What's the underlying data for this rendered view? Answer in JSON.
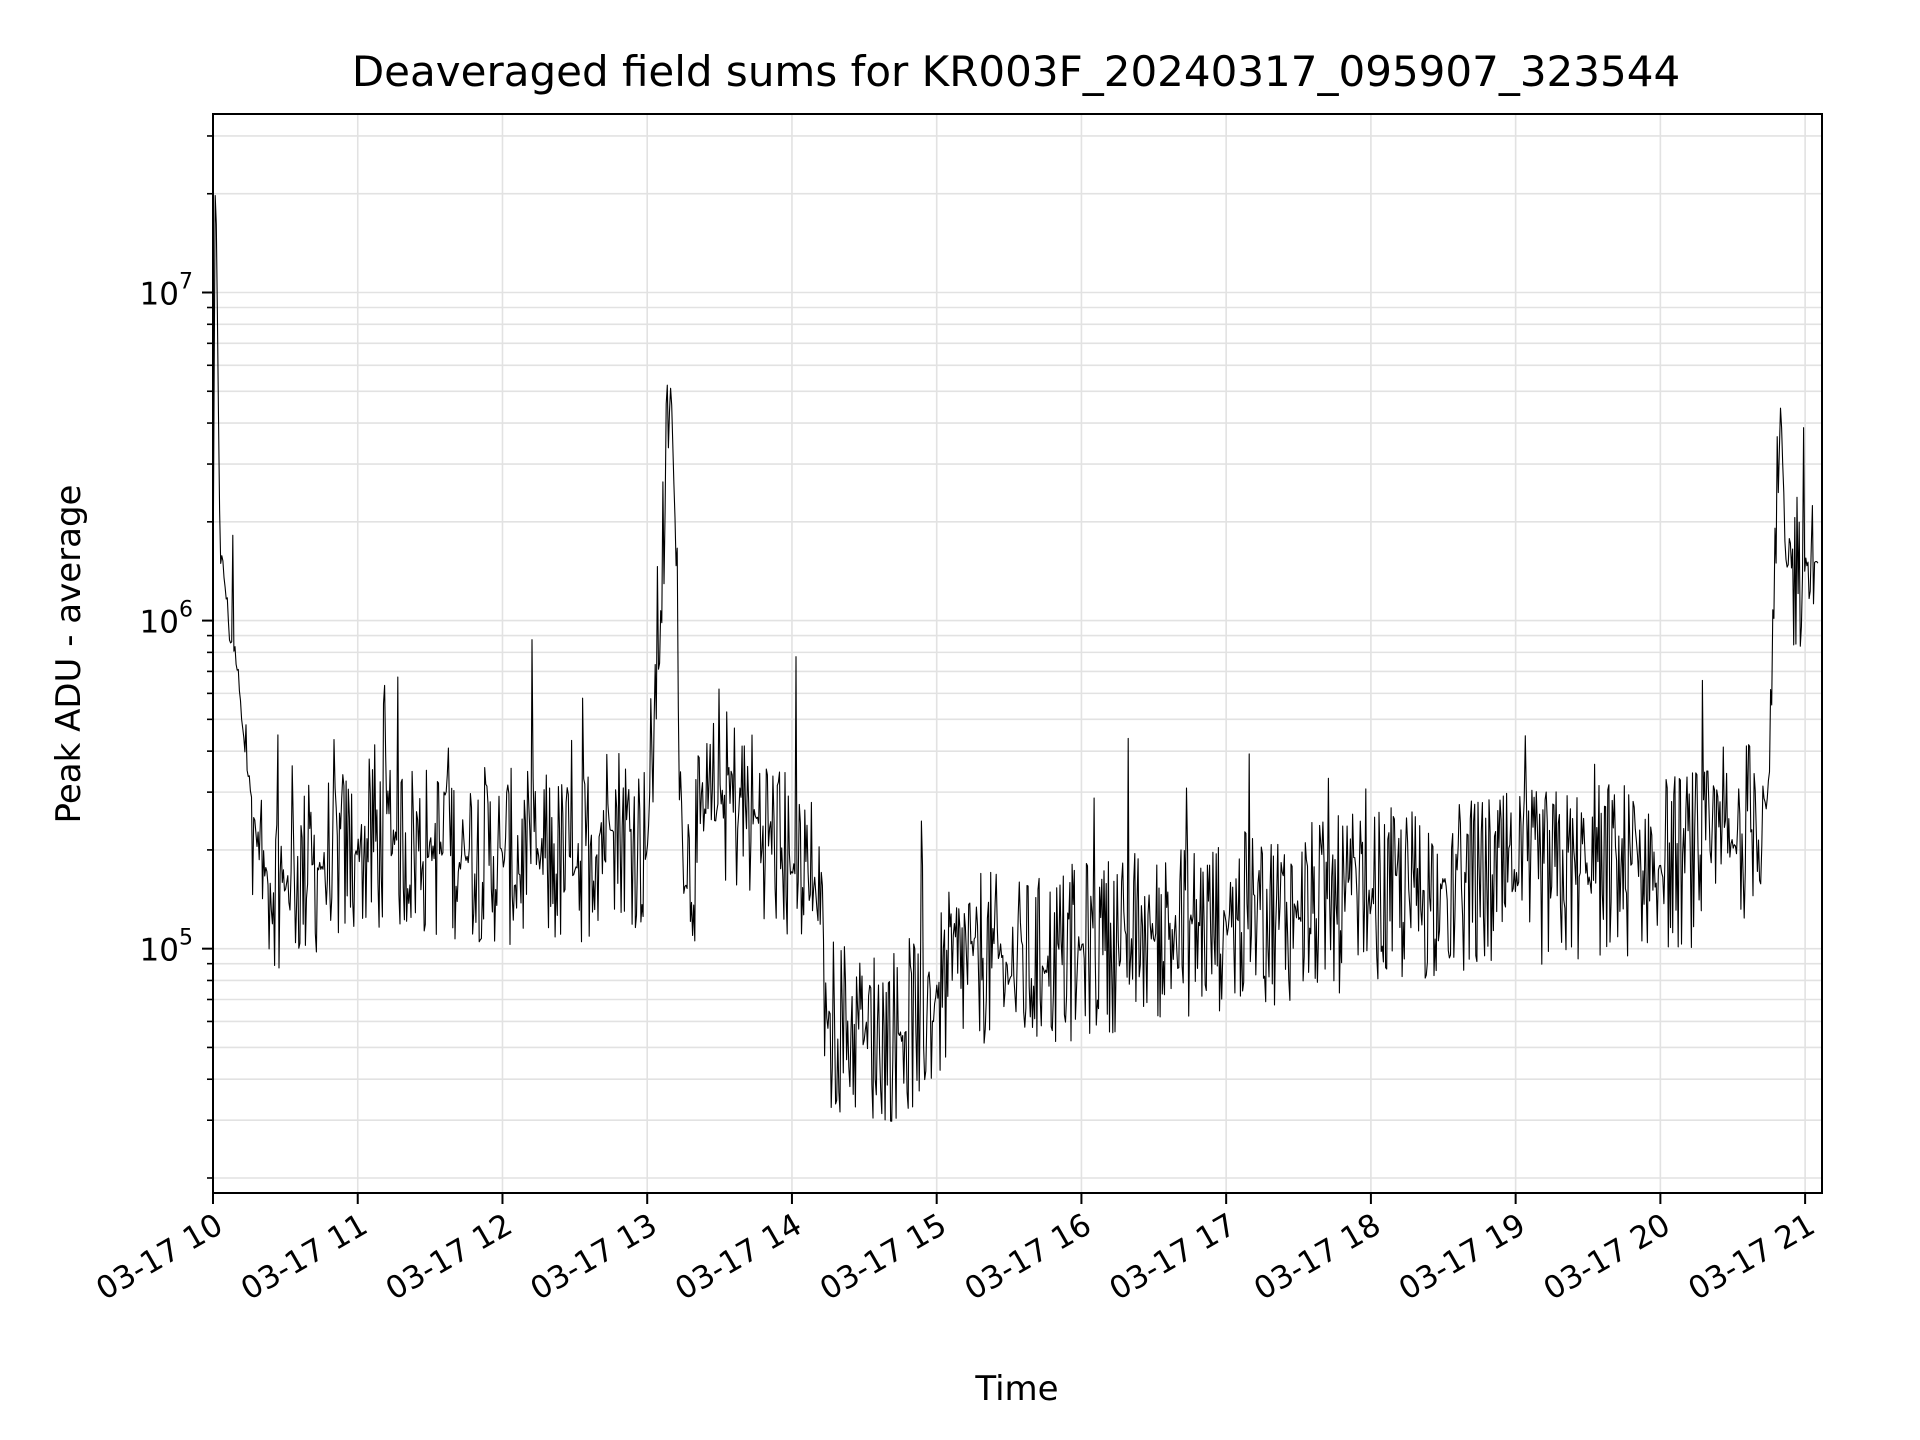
{
  "chart_data": {
    "type": "line",
    "title": "Deaveraged field sums for KR003F_20240317_095907_323544",
    "xlabel": "Time",
    "ylabel": "Peak ADU - average",
    "x_axis": {
      "type": "time",
      "range": [
        "2024-03-17 10:00",
        "2024-03-17 21:07"
      ],
      "ticks": [
        {
          "value": "2024-03-17 10:00",
          "label": "03-17 10"
        },
        {
          "value": "2024-03-17 11:00",
          "label": "03-17 11"
        },
        {
          "value": "2024-03-17 12:00",
          "label": "03-17 12"
        },
        {
          "value": "2024-03-17 13:00",
          "label": "03-17 13"
        },
        {
          "value": "2024-03-17 14:00",
          "label": "03-17 14"
        },
        {
          "value": "2024-03-17 15:00",
          "label": "03-17 15"
        },
        {
          "value": "2024-03-17 16:00",
          "label": "03-17 16"
        },
        {
          "value": "2024-03-17 17:00",
          "label": "03-17 17"
        },
        {
          "value": "2024-03-17 18:00",
          "label": "03-17 18"
        },
        {
          "value": "2024-03-17 19:00",
          "label": "03-17 19"
        },
        {
          "value": "2024-03-17 20:00",
          "label": "03-17 20"
        },
        {
          "value": "2024-03-17 21:00",
          "label": "03-17 21"
        }
      ],
      "label_rotation": -30
    },
    "y_axis": {
      "scale": "log",
      "range": [
        18000,
        35000000
      ],
      "ticks": [
        {
          "value": 100000,
          "base": "10",
          "exp": "5"
        },
        {
          "value": 1000000,
          "base": "10",
          "exp": "6"
        },
        {
          "value": 10000000,
          "base": "10",
          "exp": "7"
        }
      ]
    },
    "grid": true,
    "legend": "none",
    "series": [
      {
        "color": "#000000",
        "points": [
          [
            "2024-03-17 10:00",
            1200000
          ],
          [
            "2024-03-17 10:01",
            25000000
          ],
          [
            "2024-03-17 10:03",
            1600000
          ],
          [
            "2024-03-17 10:05",
            1300000
          ],
          [
            "2024-03-17 10:07",
            900000
          ],
          [
            "2024-03-17 10:09",
            800000
          ],
          [
            "2024-03-17 10:12",
            500000
          ],
          [
            "2024-03-17 10:15",
            320000
          ],
          [
            "2024-03-17 10:18",
            220000
          ],
          [
            "2024-03-17 10:22",
            170000
          ],
          [
            "2024-03-17 10:30",
            160000
          ],
          [
            "2024-03-17 10:45",
            180000
          ],
          [
            "2024-03-17 11:00",
            200000
          ],
          [
            "2024-03-17 11:15",
            210000
          ],
          [
            "2024-03-17 11:30",
            200000
          ],
          [
            "2024-03-17 11:45",
            200000
          ],
          [
            "2024-03-17 12:00",
            190000
          ],
          [
            "2024-03-17 12:15",
            185000
          ],
          [
            "2024-03-17 12:30",
            180000
          ],
          [
            "2024-03-17 12:45",
            250000
          ],
          [
            "2024-03-17 13:00",
            200000
          ],
          [
            "2024-03-17 13:10",
            5300000
          ],
          [
            "2024-03-17 13:15",
            160000
          ],
          [
            "2024-03-17 13:30",
            300000
          ],
          [
            "2024-03-17 13:45",
            250000
          ],
          [
            "2024-03-17 14:00",
            180000
          ],
          [
            "2024-03-17 14:10",
            150000
          ],
          [
            "2024-03-17 14:15",
            60000
          ],
          [
            "2024-03-17 14:30",
            55000
          ],
          [
            "2024-03-17 14:45",
            55000
          ],
          [
            "2024-03-17 15:00",
            70000
          ],
          [
            "2024-03-17 15:15",
            100000
          ],
          [
            "2024-03-17 15:30",
            85000
          ],
          [
            "2024-03-17 15:45",
            90000
          ],
          [
            "2024-03-17 16:00",
            100000
          ],
          [
            "2024-03-17 16:30",
            110000
          ],
          [
            "2024-03-17 17:00",
            120000
          ],
          [
            "2024-03-17 17:30",
            130000
          ],
          [
            "2024-03-17 18:00",
            140000
          ],
          [
            "2024-03-17 18:30",
            150000
          ],
          [
            "2024-03-17 19:00",
            160000
          ],
          [
            "2024-03-17 19:30",
            170000
          ],
          [
            "2024-03-17 20:00",
            180000
          ],
          [
            "2024-03-17 20:30",
            200000
          ],
          [
            "2024-03-17 20:45",
            300000
          ],
          [
            "2024-03-17 20:50",
            4600000
          ],
          [
            "2024-03-17 20:52",
            1400000
          ],
          [
            "2024-03-17 21:00",
            1500000
          ],
          [
            "2024-03-17 21:05",
            1500000
          ]
        ]
      }
    ]
  }
}
